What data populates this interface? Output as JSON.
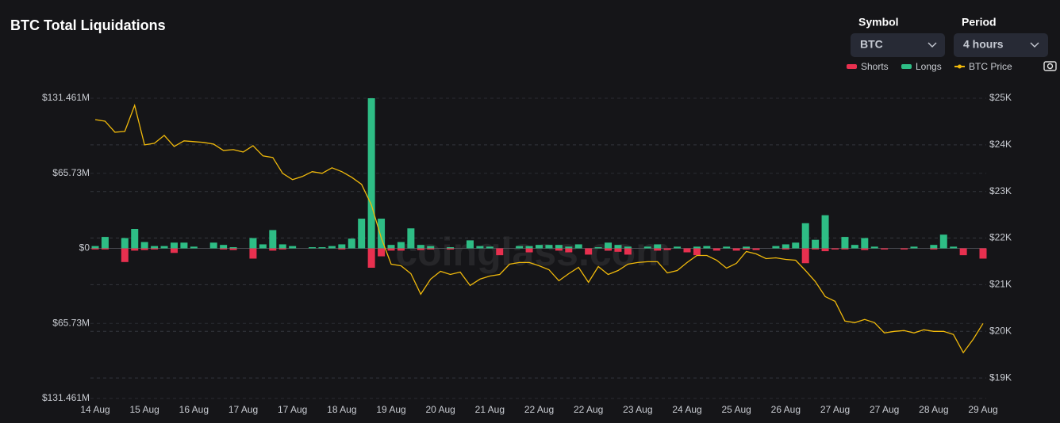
{
  "controls": {
    "symbol_label": "Symbol",
    "symbol": "BTC",
    "period_label": "Period",
    "period": "4 hours"
  },
  "watermark": "coinglass.com",
  "chart_data": {
    "type": "bar",
    "title": "BTC Total Liquidations",
    "categories": [
      "14 Aug",
      null,
      null,
      null,
      null,
      "15 Aug",
      null,
      null,
      null,
      null,
      "16 Aug",
      null,
      null,
      null,
      null,
      "17 Aug",
      null,
      null,
      null,
      null,
      "17 Aug",
      null,
      null,
      null,
      null,
      "18 Aug",
      null,
      null,
      null,
      null,
      "19 Aug",
      null,
      null,
      null,
      null,
      "20 Aug",
      null,
      null,
      null,
      null,
      "21 Aug",
      null,
      null,
      null,
      null,
      "22 Aug",
      null,
      null,
      null,
      null,
      "22 Aug",
      null,
      null,
      null,
      null,
      "23 Aug",
      null,
      null,
      null,
      null,
      "24 Aug",
      null,
      null,
      null,
      null,
      "25 Aug",
      null,
      null,
      null,
      null,
      "26 Aug",
      null,
      null,
      null,
      null,
      "27 Aug",
      null,
      null,
      null,
      null,
      "27 Aug",
      null,
      null,
      null,
      null,
      "28 Aug",
      null,
      null,
      null,
      null,
      "29 Aug"
    ],
    "series": [
      {
        "name": "Shorts",
        "color": "#e8304f",
        "values": [
          -1,
          -1,
          0,
          -12,
          -2,
          -1.5,
          -1,
          0,
          -4,
          0,
          0,
          0,
          0,
          -1,
          -1.5,
          0,
          -9,
          0,
          -2,
          -1,
          0,
          0,
          0,
          0,
          0,
          -1,
          0,
          0,
          -17,
          -7,
          -2,
          -2,
          0,
          -1.5,
          -1,
          0,
          -1,
          0,
          0,
          0,
          0,
          -6,
          0,
          0,
          -3.5,
          0,
          0,
          -2,
          -3.5,
          0,
          -5.5,
          0,
          -2,
          -3,
          -5.5,
          0,
          0,
          -2,
          -1.5,
          0,
          -3.5,
          -6,
          0,
          -2,
          0,
          -2,
          -1,
          -1.5,
          0,
          0,
          -1,
          0,
          -13,
          -1,
          -2.5,
          -1,
          -1,
          0,
          -1.5,
          0,
          -1,
          0,
          -1,
          0,
          0,
          -1,
          0,
          0,
          -6,
          0,
          -9
        ]
      },
      {
        "name": "Longs",
        "color": "#2ebd85",
        "values": [
          2,
          10,
          0,
          9,
          17,
          5.5,
          2,
          2,
          5,
          5,
          1.5,
          0,
          5,
          3,
          1,
          0,
          9,
          3.5,
          16,
          3.5,
          2,
          0,
          1,
          1,
          2,
          3.5,
          8.5,
          26,
          131.461,
          26,
          3,
          5.5,
          17.5,
          3,
          2,
          0,
          1,
          0,
          7,
          2,
          1.5,
          0,
          0,
          2,
          2,
          3,
          3,
          3,
          1.5,
          3.5,
          0,
          1,
          5,
          3,
          1.5,
          0,
          1.5,
          3.5,
          0,
          1.5,
          0,
          1.5,
          2,
          0,
          1.5,
          0,
          1.5,
          0,
          0,
          2,
          3.5,
          5,
          22,
          7.5,
          29,
          0,
          10,
          3,
          9,
          1.5,
          0,
          0,
          0,
          1.5,
          0,
          3,
          12,
          1.5,
          0,
          0,
          0
        ]
      },
      {
        "name": "BTC Price",
        "color": "#f0b90b",
        "axis": "y2",
        "values": [
          24542,
          24508,
          24271,
          24288,
          24847,
          24000,
          24034,
          24203,
          23966,
          24085,
          24068,
          24051,
          24017,
          23881,
          23898,
          23847,
          23983,
          23763,
          23729,
          23390,
          23254,
          23322,
          23424,
          23390,
          23508,
          23424,
          23305,
          23153,
          22712,
          22000,
          21441,
          21407,
          21237,
          20797,
          21119,
          21288,
          21220,
          21271,
          20983,
          21119,
          21186,
          21220,
          21441,
          21475,
          21475,
          21407,
          21322,
          21085,
          21237,
          21373,
          21051,
          21390,
          21220,
          21305,
          21441,
          21475,
          21492,
          21492,
          21254,
          21305,
          21475,
          21627,
          21627,
          21525,
          21356,
          21458,
          21712,
          21661,
          21559,
          21576,
          21542,
          21525,
          21305,
          21068,
          20746,
          20644,
          20220,
          20186,
          20254,
          20186,
          19966,
          20000,
          20017,
          19966,
          20034,
          20000,
          20000,
          19932,
          19542,
          19831,
          20169
        ]
      }
    ],
    "ylim": [
      -131.461,
      131.461
    ],
    "yticks": [
      {
        "value": 131.461,
        "label": "$131.461M"
      },
      {
        "value": 65.73,
        "label": "$65.73M"
      },
      {
        "value": 0,
        "label": "$0"
      },
      {
        "value": -65.73,
        "label": "$65.73M"
      },
      {
        "value": -131.461,
        "label": "$131.461M"
      }
    ],
    "y2lim": [
      18560,
      25000
    ],
    "y2ticks": [
      {
        "value": 25000,
        "label": "$25K"
      },
      {
        "value": 24000,
        "label": "$24K"
      },
      {
        "value": 23000,
        "label": "$23K"
      },
      {
        "value": 22000,
        "label": "$22K"
      },
      {
        "value": 21000,
        "label": "$21K"
      },
      {
        "value": 20000,
        "label": "$20K"
      },
      {
        "value": 19000,
        "label": "$19K"
      }
    ],
    "grid": "y2",
    "legend": "top-right"
  }
}
